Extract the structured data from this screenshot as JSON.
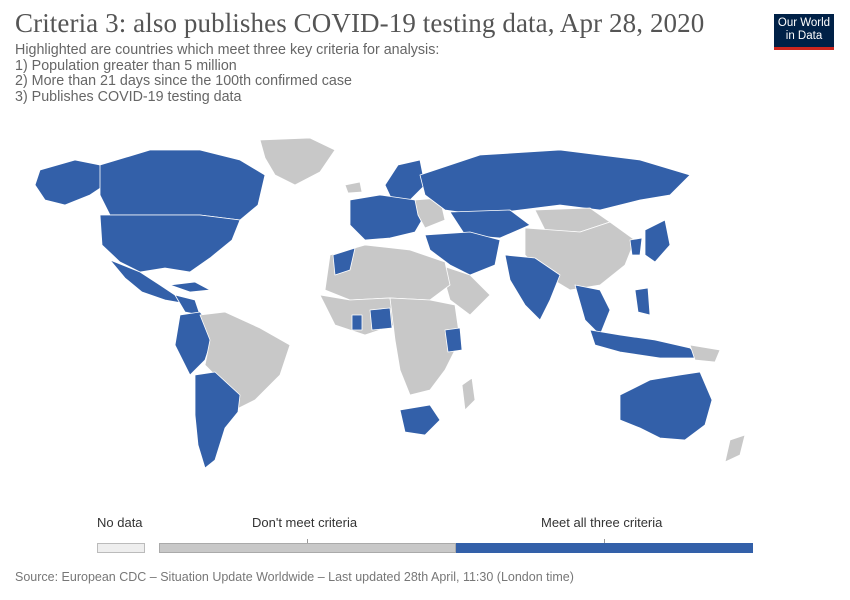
{
  "header": {
    "title": "Criteria 3: also publishes COVID-19 testing data, Apr 28, 2020",
    "subtitle_lines": [
      "Highlighted are countries which meet three key criteria for analysis:",
      "1) Population greater than 5 million",
      "2) More than 21 days since the 100th confirmed case",
      "3) Publishes COVID-19 testing data"
    ]
  },
  "logo": {
    "line1": "Our World",
    "line2": "in Data",
    "bg": "#002147",
    "accent": "#ce261e"
  },
  "colors": {
    "meet": "#3360a9",
    "not_meet": "#c8c8c8",
    "no_data": "#eeeeee",
    "border": "#ffffff"
  },
  "legend": {
    "no_data": "No data",
    "not_meet": "Don't meet criteria",
    "meet": "Meet all three criteria"
  },
  "source": "Source: European CDC – Situation Update Worldwide – Last updated 28th April, 11:30 (London time)"
}
